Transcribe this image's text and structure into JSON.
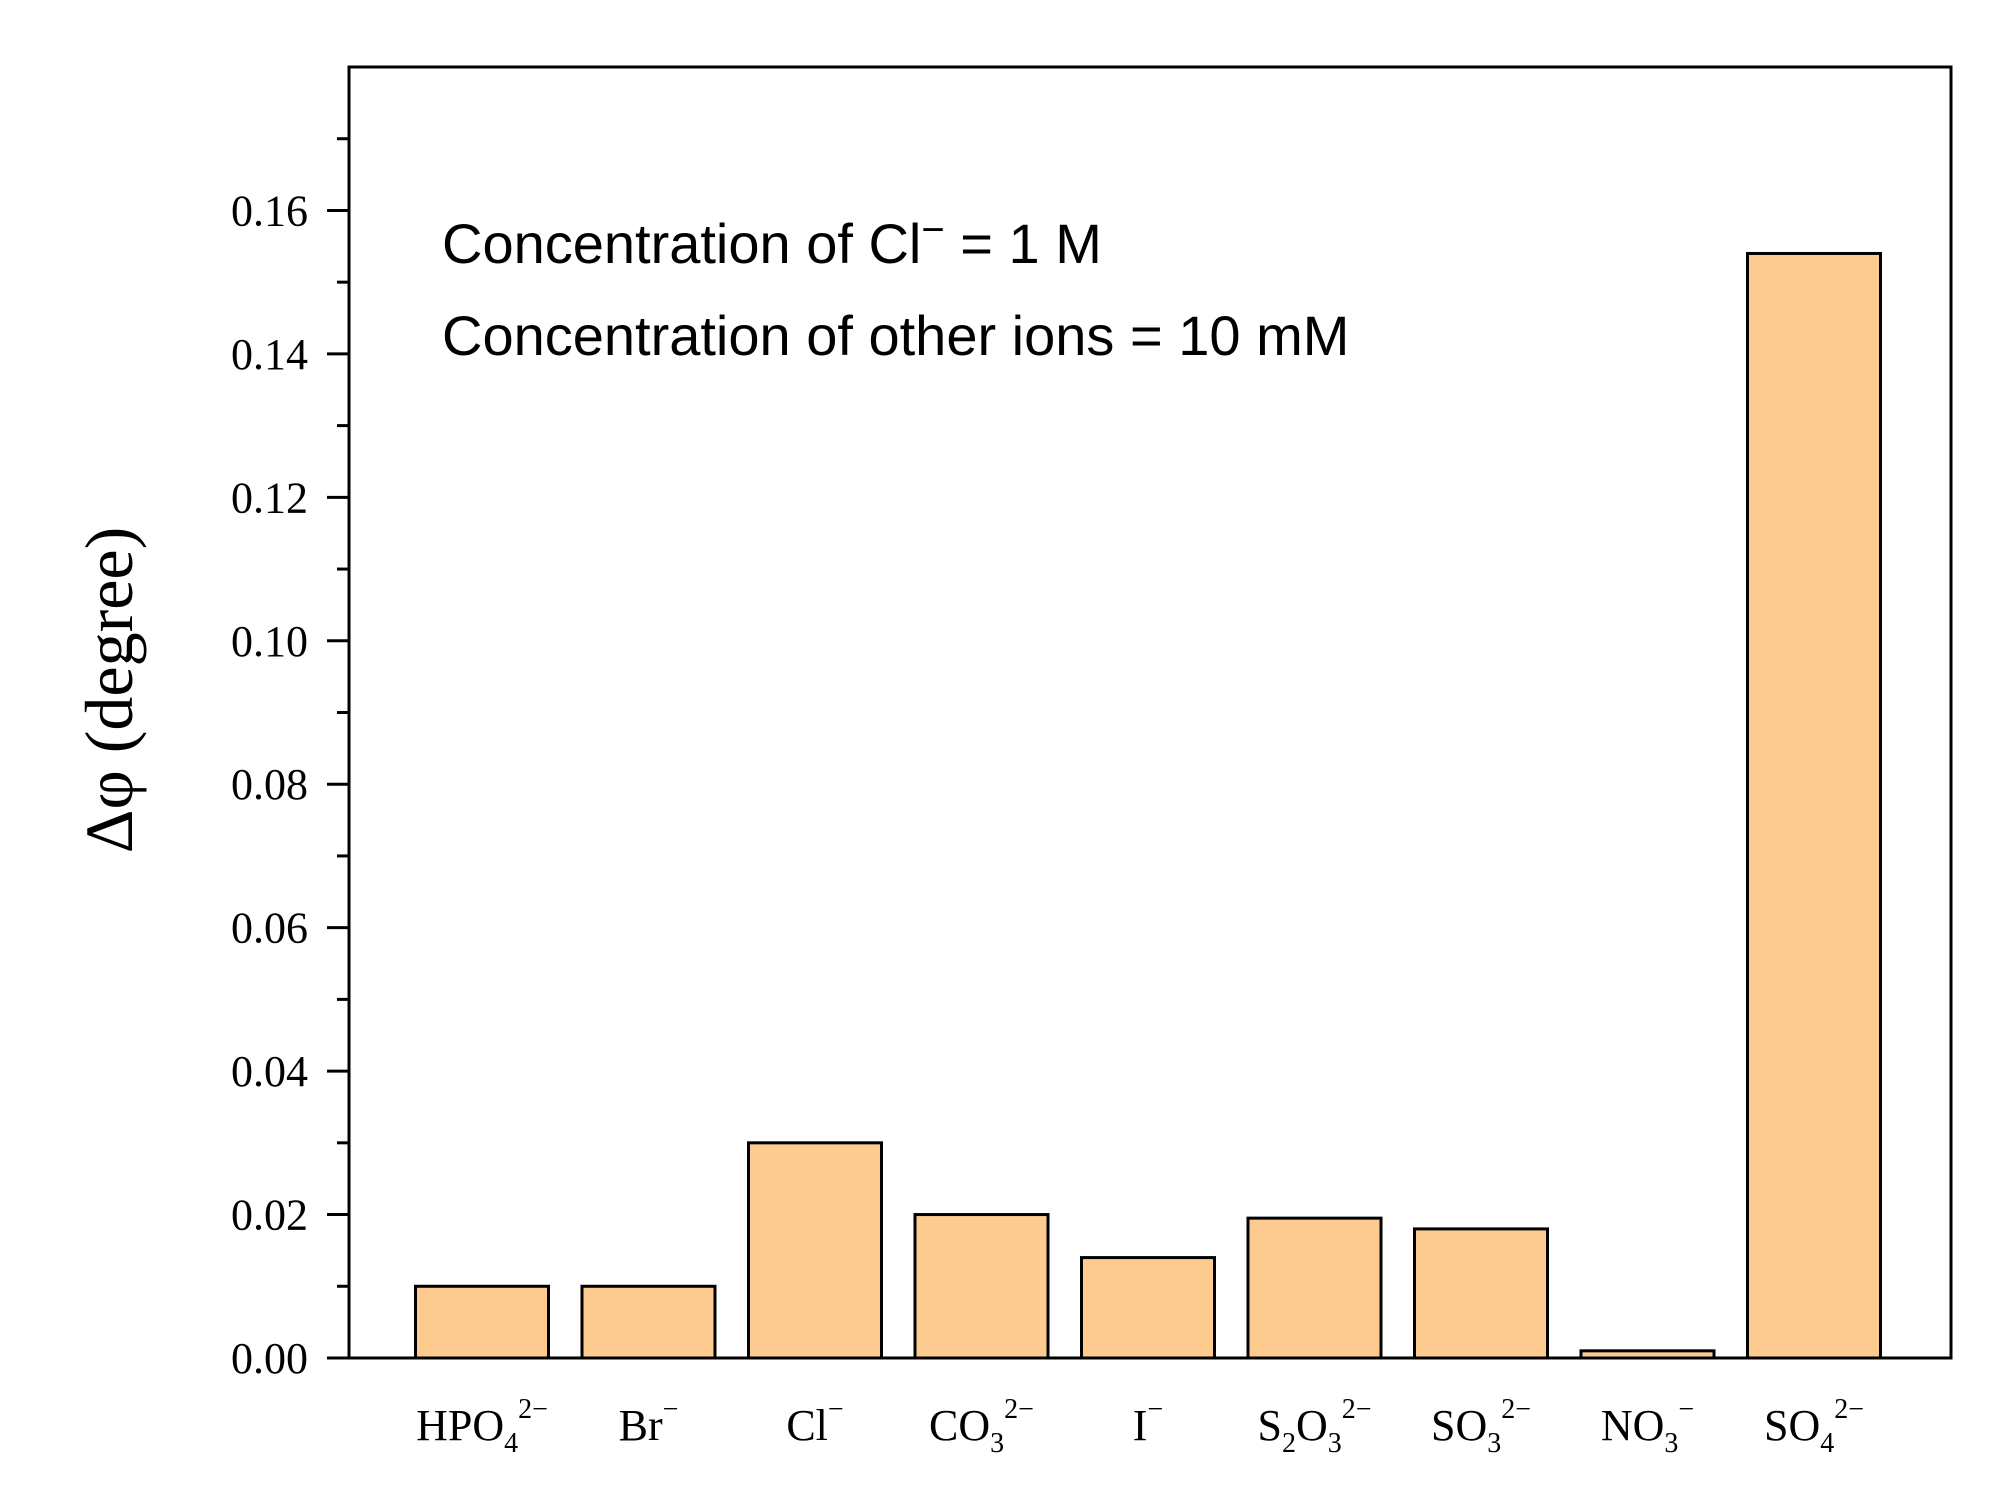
{
  "chart_data": {
    "type": "bar",
    "title": "",
    "xlabel": "",
    "ylabel": "Δφ (degree)",
    "ylim": [
      0,
      0.18
    ],
    "yticks": [
      0.0,
      0.02,
      0.04,
      0.06,
      0.08,
      0.1,
      0.12,
      0.14,
      0.16
    ],
    "ytick_labels": [
      "0.00",
      "0.02",
      "0.04",
      "0.06",
      "0.08",
      "0.10",
      "0.12",
      "0.14",
      "0.16"
    ],
    "categories": [
      {
        "base": "HPO",
        "sub": "4",
        "sup": "2−"
      },
      {
        "base": "Br",
        "sub": "",
        "sup": "−"
      },
      {
        "base": "Cl",
        "sub": "",
        "sup": "−"
      },
      {
        "base": "CO",
        "sub": "3",
        "sup": "2−"
      },
      {
        "base": "I",
        "sub": "",
        "sup": "−"
      },
      {
        "base": "S",
        "sub": "2",
        "base2": "O",
        "sub2": "3",
        "sup": "2−"
      },
      {
        "base": "SO",
        "sub": "3",
        "sup": "2−"
      },
      {
        "base": "NO",
        "sub": "3",
        "sup": "−"
      },
      {
        "base": "SO",
        "sub": "4",
        "sup": "2−"
      }
    ],
    "values": [
      0.01,
      0.01,
      0.03,
      0.02,
      0.014,
      0.0195,
      0.018,
      0.001,
      0.154
    ],
    "bar_color": "#FDCB8F",
    "edge_color": "#000000",
    "grid": false,
    "annotations": [
      {
        "prefix": "Concentration of Cl",
        "sup": "−",
        "suffix": " = 1 M"
      },
      {
        "prefix": "Concentration of other ions = 10 mM",
        "sup": "",
        "suffix": ""
      }
    ]
  }
}
